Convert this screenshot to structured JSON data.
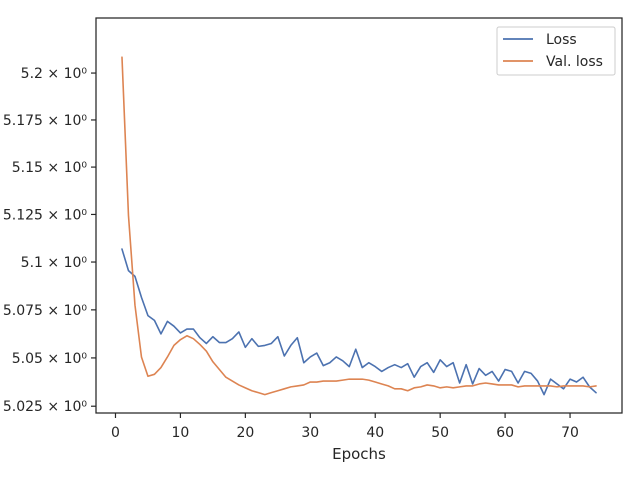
{
  "chart_data": {
    "type": "line",
    "title": "",
    "xlabel": "Epochs",
    "ylabel": "",
    "y_scale": "log",
    "xlim": [
      -3,
      78
    ],
    "ylim": [
      5.0215,
      5.2295
    ],
    "grid": false,
    "legend_position": "top-right",
    "x_ticks": [
      0,
      10,
      20,
      30,
      40,
      50,
      60,
      70
    ],
    "x_tick_labels": [
      "0",
      "10",
      "20",
      "30",
      "40",
      "50",
      "60",
      "70"
    ],
    "y_ticks": [
      5.025,
      5.05,
      5.075,
      5.1,
      5.125,
      5.15,
      5.175,
      5.2
    ],
    "y_tick_labels": [
      "5.025 × 10⁰",
      "5.05 × 10⁰",
      "5.075 × 10⁰",
      "5.1 × 10⁰",
      "5.125 × 10⁰",
      "5.15 × 10⁰",
      "5.175 × 10⁰",
      "5.2 × 10⁰"
    ],
    "x": [
      1,
      2,
      3,
      4,
      5,
      6,
      7,
      8,
      9,
      10,
      11,
      12,
      13,
      14,
      15,
      16,
      17,
      18,
      19,
      20,
      21,
      22,
      23,
      24,
      25,
      26,
      27,
      28,
      29,
      30,
      31,
      32,
      33,
      34,
      35,
      36,
      37,
      38,
      39,
      40,
      41,
      42,
      43,
      44,
      45,
      46,
      47,
      48,
      49,
      50,
      51,
      52,
      53,
      54,
      55,
      56,
      57,
      58,
      59,
      60,
      61,
      62,
      63,
      64,
      65,
      66,
      67,
      68,
      69,
      70,
      71,
      72,
      73,
      74
    ],
    "series": [
      {
        "name": "Loss",
        "color": "#4c72b0",
        "values": [
          5.1068,
          5.0955,
          5.0925,
          5.0815,
          5.072,
          5.0695,
          5.0625,
          5.069,
          5.0665,
          5.063,
          5.065,
          5.065,
          5.0605,
          5.0575,
          5.061,
          5.058,
          5.058,
          5.06,
          5.0635,
          5.0555,
          5.06,
          5.056,
          5.0565,
          5.0575,
          5.061,
          5.051,
          5.0565,
          5.0605,
          5.0475,
          5.0505,
          5.0525,
          5.046,
          5.0475,
          5.0505,
          5.0485,
          5.0455,
          5.0545,
          5.045,
          5.0475,
          5.0455,
          5.043,
          5.045,
          5.0465,
          5.045,
          5.047,
          5.04,
          5.0455,
          5.0475,
          5.0425,
          5.049,
          5.0455,
          5.0475,
          5.037,
          5.0465,
          5.0365,
          5.0445,
          5.041,
          5.043,
          5.038,
          5.044,
          5.043,
          5.037,
          5.043,
          5.042,
          5.038,
          5.031,
          5.039,
          5.0365,
          5.034,
          5.039,
          5.0375,
          5.04,
          5.035,
          5.032
        ]
      },
      {
        "name": "Val. loss",
        "color": "#dd8452",
        "values": [
          5.2085,
          5.1245,
          5.0775,
          5.0505,
          5.0405,
          5.0415,
          5.045,
          5.0505,
          5.0565,
          5.0595,
          5.0615,
          5.06,
          5.057,
          5.0535,
          5.048,
          5.044,
          5.04,
          5.038,
          5.036,
          5.0345,
          5.033,
          5.032,
          5.031,
          5.032,
          5.033,
          5.034,
          5.035,
          5.0355,
          5.036,
          5.0375,
          5.0375,
          5.038,
          5.038,
          5.038,
          5.0385,
          5.039,
          5.039,
          5.039,
          5.0385,
          5.0375,
          5.0365,
          5.0355,
          5.034,
          5.034,
          5.033,
          5.0345,
          5.035,
          5.036,
          5.0355,
          5.0345,
          5.035,
          5.0345,
          5.035,
          5.0355,
          5.0355,
          5.0365,
          5.037,
          5.0365,
          5.036,
          5.036,
          5.036,
          5.035,
          5.0355,
          5.0355,
          5.0355,
          5.0355,
          5.0355,
          5.035,
          5.0355,
          5.0355,
          5.0355,
          5.0355,
          5.035,
          5.0355
        ]
      }
    ]
  }
}
